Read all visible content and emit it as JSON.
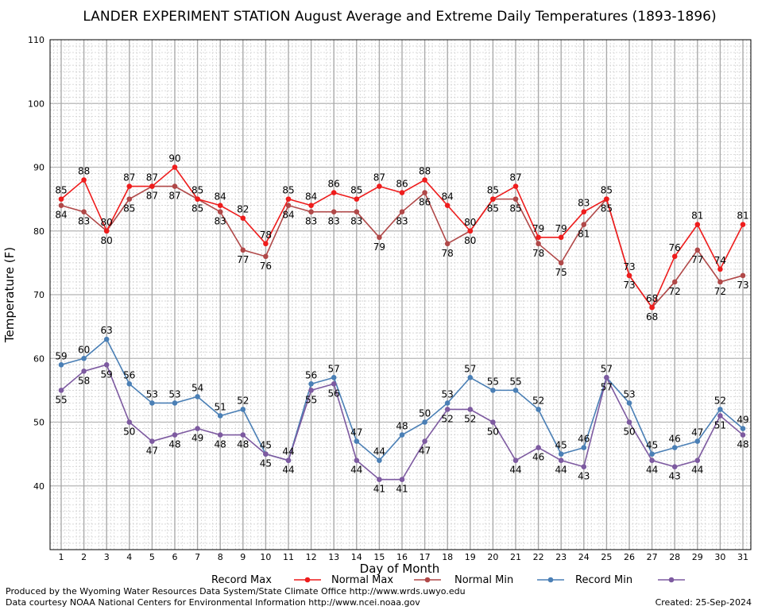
{
  "chart_data": {
    "type": "line",
    "title": "LANDER EXPERIMENT STATION August Average and Extreme Daily Temperatures (1893-1896)",
    "xlabel": "Day of Month",
    "ylabel": "Temperature (F)",
    "ylim": [
      30,
      110
    ],
    "yticks": [
      40,
      50,
      60,
      70,
      80,
      90,
      100,
      110
    ],
    "x": [
      1,
      2,
      3,
      4,
      5,
      6,
      7,
      8,
      9,
      10,
      11,
      12,
      13,
      14,
      15,
      16,
      17,
      18,
      19,
      20,
      21,
      22,
      23,
      24,
      25,
      26,
      27,
      28,
      29,
      30,
      31
    ],
    "grid": true,
    "legend_position": "bottom",
    "series": [
      {
        "name": "Record Max",
        "color": "#ee1c1c",
        "values": [
          85,
          88,
          80,
          87,
          87,
          90,
          85,
          84,
          82,
          78,
          85,
          84,
          86,
          85,
          87,
          86,
          88,
          84,
          80,
          85,
          87,
          79,
          79,
          83,
          85,
          73,
          68,
          76,
          81,
          74,
          81
        ]
      },
      {
        "name": "Normal Max",
        "color": "#b04848",
        "values": [
          84,
          83,
          80,
          85,
          87,
          87,
          85,
          83,
          77,
          76,
          84,
          83,
          83,
          83,
          79,
          83,
          86,
          78,
          80,
          85,
          85,
          78,
          75,
          81,
          85,
          73,
          68,
          72,
          77,
          72,
          73
        ]
      },
      {
        "name": "Normal Min",
        "color": "#4a7fb5",
        "values": [
          59,
          60,
          63,
          56,
          53,
          53,
          54,
          51,
          52,
          45,
          44,
          56,
          57,
          47,
          44,
          48,
          50,
          53,
          57,
          55,
          55,
          52,
          45,
          46,
          57,
          53,
          45,
          46,
          47,
          52,
          49
        ]
      },
      {
        "name": "Record Min",
        "color": "#7d5aa0",
        "values": [
          55,
          58,
          59,
          50,
          47,
          48,
          49,
          48,
          48,
          45,
          44,
          55,
          56,
          44,
          41,
          41,
          47,
          52,
          52,
          50,
          44,
          46,
          44,
          43,
          57,
          50,
          44,
          43,
          44,
          51,
          48
        ]
      }
    ]
  },
  "footer": {
    "left_line1": "Produced by the Wyoming Water Resources Data System/State Climate Office http://www.wrds.uwyo.edu",
    "left_line2": "Data courtesy NOAA National Centers for Environmental Information http://www.ncei.noaa.gov",
    "created": "Created:  25-Sep-2024"
  }
}
